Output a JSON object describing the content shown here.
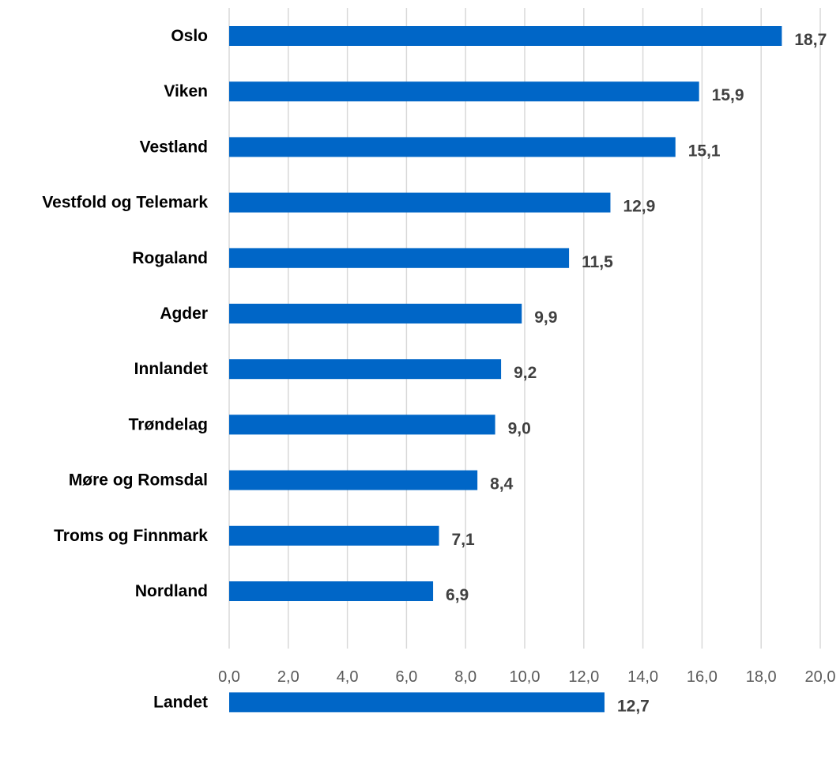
{
  "chart_data": {
    "type": "bar",
    "orientation": "horizontal",
    "title": "",
    "xlabel": "",
    "ylabel": "",
    "categories": [
      "Oslo",
      "Viken",
      "Vestland",
      "Vestfold og Telemark",
      "Rogaland",
      "Agder",
      "Innlandet",
      "Trøndelag",
      "Møre og Romsdal",
      "Troms og Finnmark",
      "Nordland",
      "",
      "Landet"
    ],
    "values": [
      18.7,
      15.9,
      15.1,
      12.9,
      11.5,
      9.9,
      9.2,
      9.0,
      8.4,
      7.1,
      6.9,
      null,
      12.7
    ],
    "value_labels": [
      "18,7",
      "15,9",
      "15,1",
      "12,9",
      "11,5",
      "9,9",
      "9,2",
      "9,0",
      "8,4",
      "7,1",
      "6,9",
      "",
      "12,7"
    ],
    "xlim": [
      0,
      20
    ],
    "x_ticks": [
      0,
      2,
      4,
      6,
      8,
      10,
      12,
      14,
      16,
      18,
      20
    ],
    "x_tick_labels": [
      "0,0",
      "2,0",
      "4,0",
      "6,0",
      "8,0",
      "10,0",
      "12,0",
      "14,0",
      "16,0",
      "18,0",
      "20,0"
    ],
    "grid": "vertical",
    "legend": "none",
    "colors": {
      "bar": "#0066c7",
      "grid": "#d9d9d9",
      "category_text": "#000000",
      "value_text": "#404040",
      "tick_text": "#595959"
    }
  }
}
